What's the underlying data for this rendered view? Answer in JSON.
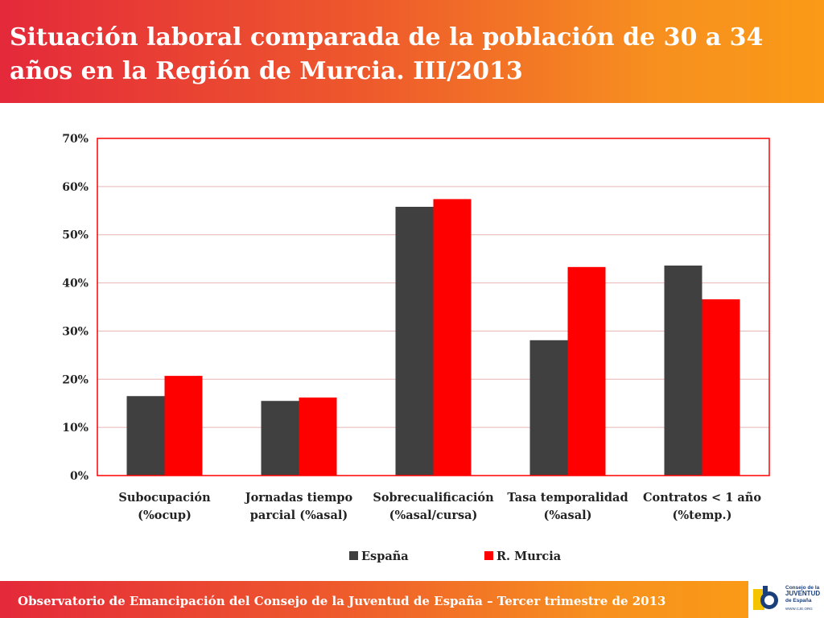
{
  "header": {
    "title": "Situación laboral comparada de la población de 30 a 34 años en la Región de Murcia. III/2013"
  },
  "chart_data": {
    "type": "bar",
    "title": "Situación laboral comparada de la población de 30 a 34 años en la Región de Murcia. III/2013",
    "categories": [
      [
        "Subocupación",
        "(%ocup)"
      ],
      [
        "Jornadas tiempo",
        "parcial (%asal)"
      ],
      [
        "Sobrecualificación",
        "(%asal/cursa)"
      ],
      [
        "Tasa temporalidad",
        "(%asal)"
      ],
      [
        "Contratos < 1 año",
        "(%temp.)"
      ]
    ],
    "series": [
      {
        "name": "España",
        "color": "#404040",
        "values": [
          16.5,
          15.5,
          55.8,
          28.1,
          43.6
        ]
      },
      {
        "name": "R. Murcia",
        "color": "#ff0000",
        "values": [
          20.7,
          16.2,
          57.4,
          43.3,
          36.6
        ]
      }
    ],
    "ylim": [
      0,
      70
    ],
    "yticks": [
      0,
      10,
      20,
      30,
      40,
      50,
      60,
      70
    ],
    "ytick_labels": [
      "0%",
      "10%",
      "20%",
      "30%",
      "40%",
      "50%",
      "60%",
      "70%"
    ],
    "xlabel": "",
    "ylabel": "",
    "grid": true,
    "legend_position": "bottom-center"
  },
  "footer": {
    "text": "Observatorio de Emancipación del Consejo de la Juventud de España – Tercer trimestre de 2013"
  },
  "logo": {
    "line1": "Consejo de la",
    "line2": "JUVENTUD",
    "line3": "de España",
    "url": "WWW.CJE.ORG"
  },
  "colors": {
    "header_gradient_start": "#e4293a",
    "header_gradient_end": "#fa9a17",
    "plot_border": "#ff0000",
    "gridline": "#e8b4b4"
  }
}
